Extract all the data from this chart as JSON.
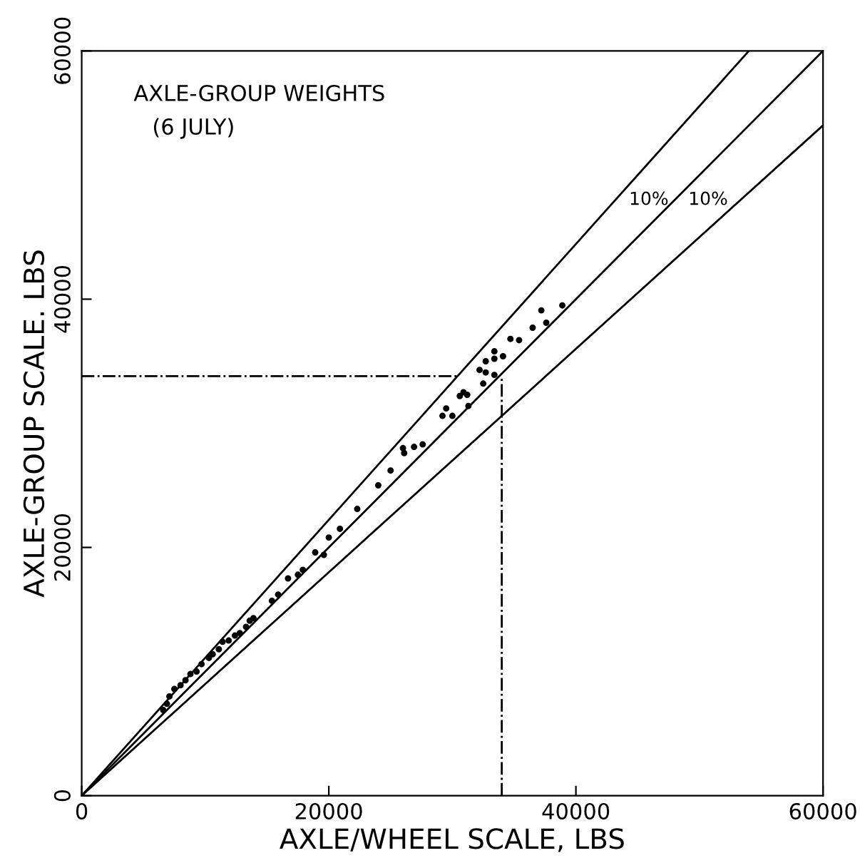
{
  "chart_data": {
    "type": "scatter",
    "title": "AXLE-GROUP WEIGHTS",
    "subtitle": "(6 JULY)",
    "xlabel": "AXLE/WHEEL SCALE, LBS",
    "ylabel": "AXLE-GROUP SCALE. LBS",
    "xlim": [
      0,
      60000
    ],
    "ylim": [
      0,
      60000
    ],
    "xticks": [
      0,
      20000,
      40000,
      60000
    ],
    "yticks": [
      0,
      20000,
      40000,
      60000
    ],
    "grid": false,
    "annotations": [
      "10%",
      "10%"
    ],
    "series": [
      {
        "type": "line",
        "color": "#000000",
        "line_style": "solid",
        "x": [
          0,
          60000
        ],
        "values": [
          0,
          60000
        ]
      },
      {
        "type": "line",
        "color": "#000000",
        "line_style": "solid",
        "x": [
          0,
          54000
        ],
        "values": [
          0,
          60000
        ]
      },
      {
        "type": "line",
        "color": "#000000",
        "line_style": "solid",
        "x": [
          0,
          60000
        ],
        "values": [
          0,
          54000
        ]
      },
      {
        "type": "line",
        "color": "#000000",
        "line_style": "dashdot",
        "x": [
          0,
          30400
        ],
        "values": [
          33800,
          33800
        ]
      },
      {
        "type": "line",
        "color": "#000000",
        "line_style": "dashdot",
        "x": [
          34000,
          34000
        ],
        "values": [
          0,
          33800
        ]
      },
      {
        "marker": "circle",
        "color": "#000000",
        "x": [
          38900,
          37200,
          37600,
          36500,
          35400,
          34700,
          33400,
          33400,
          32700,
          32700,
          32500,
          32200,
          33400,
          34100,
          31200,
          30600,
          30900,
          29500,
          30000,
          29200,
          31300,
          27600,
          26900,
          26000,
          26100,
          25000,
          24000,
          22300,
          20900,
          20000,
          18900,
          19600,
          17900,
          17500,
          16700,
          15900,
          15400,
          13900,
          13600,
          13300,
          12800,
          12400,
          11900,
          11400,
          11100,
          10600,
          10300,
          9700,
          9300,
          8800,
          8400,
          8000,
          7500,
          7100,
          6600,
          6900
        ],
        "values": [
          39500,
          39100,
          38100,
          37700,
          36700,
          36800,
          35800,
          35200,
          35000,
          34100,
          33200,
          34300,
          33900,
          35400,
          32300,
          32200,
          32500,
          31200,
          30600,
          30600,
          31400,
          28300,
          28100,
          28000,
          27600,
          26200,
          25000,
          23100,
          21500,
          20800,
          19600,
          19400,
          18200,
          17800,
          17500,
          16200,
          15700,
          14300,
          14100,
          13600,
          13100,
          12900,
          12500,
          12400,
          11800,
          11400,
          11100,
          10600,
          10000,
          9800,
          9300,
          8900,
          8600,
          8000,
          6900,
          7400
        ]
      }
    ]
  }
}
